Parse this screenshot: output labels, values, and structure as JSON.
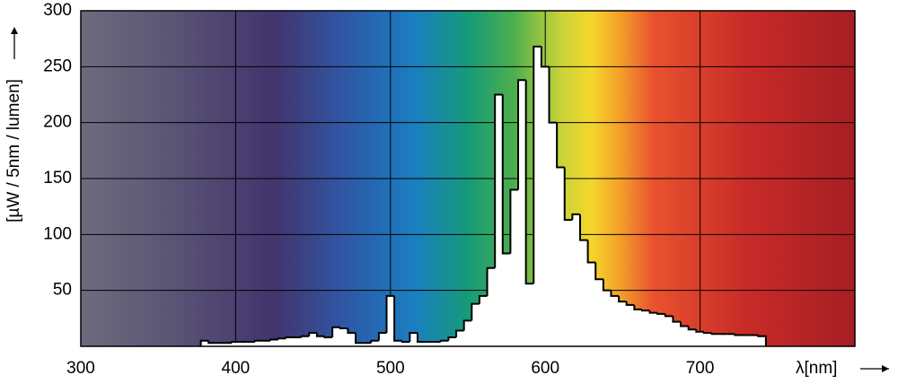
{
  "chart_data": {
    "type": "step",
    "x_label": "λ[nm]",
    "y_label": "[µW / 5nm / lumen]",
    "xlim": [
      300,
      800
    ],
    "xticks": [
      300,
      400,
      500,
      600,
      700
    ],
    "ylim": [
      0,
      300
    ],
    "yticks": [
      50,
      100,
      150,
      200,
      250,
      300
    ],
    "grid": true,
    "series": [
      {
        "color": "#ffffff",
        "x": [
          380,
          385,
          390,
          395,
          400,
          405,
          410,
          415,
          420,
          425,
          430,
          435,
          440,
          445,
          450,
          455,
          460,
          465,
          470,
          475,
          480,
          485,
          490,
          495,
          500,
          505,
          510,
          515,
          520,
          525,
          530,
          535,
          540,
          545,
          550,
          555,
          560,
          565,
          570,
          575,
          580,
          585,
          590,
          595,
          600,
          605,
          610,
          615,
          620,
          625,
          630,
          635,
          640,
          645,
          650,
          655,
          660,
          665,
          670,
          675,
          680,
          685,
          690,
          695,
          700,
          705,
          710,
          715,
          720,
          725,
          730,
          735,
          740
        ],
        "values": [
          5,
          3,
          3,
          3,
          4,
          4,
          4,
          5,
          5,
          6,
          7,
          8,
          8,
          9,
          12,
          9,
          8,
          17,
          16,
          12,
          3,
          3,
          5,
          12,
          45,
          5,
          4,
          12,
          4,
          4,
          4,
          5,
          8,
          14,
          23,
          38,
          45,
          70,
          225,
          83,
          140,
          238,
          56,
          268,
          250,
          200,
          160,
          113,
          118,
          95,
          75,
          60,
          50,
          45,
          40,
          37,
          33,
          32,
          30,
          29,
          27,
          22,
          18,
          15,
          13,
          12,
          11,
          11,
          11,
          10,
          10,
          10,
          9
        ]
      }
    ]
  }
}
